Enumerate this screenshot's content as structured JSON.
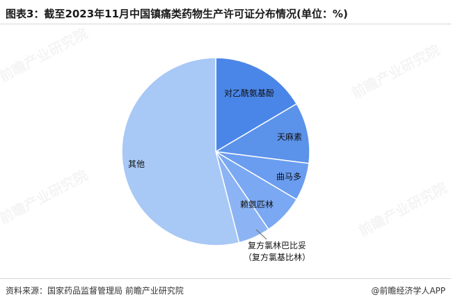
{
  "title": "图表3：截至2023年11月中国镇痛类药物生产许可证分布情况(单位：%)",
  "source": "资料来源：国家药品监督管理局 前瞻产业研究院",
  "brand": "@前瞻经济学人APP",
  "watermark": "前瞻产业研究院",
  "chart_data": {
    "type": "pie",
    "title": "图表3：截至2023年11月中国镇痛类药物生产许可证分布情况(单位：%)",
    "unit": "%",
    "start_angle_deg": 0,
    "direction": "clockwise",
    "legend": "none",
    "slices": [
      {
        "label": "对乙酰氨基酚",
        "label_line2": "",
        "value": 16.5,
        "color": "#4a86e8"
      },
      {
        "label": "天麻素",
        "label_line2": "",
        "value": 10.5,
        "color": "#5b92ea"
      },
      {
        "label": "曲马多",
        "label_line2": "",
        "value": 6.5,
        "color": "#6a9df0"
      },
      {
        "label": "赖氨匹林",
        "label_line2": "",
        "value": 7.0,
        "color": "#7aa8f2"
      },
      {
        "label": "复方氯林巴比妥",
        "label_line2": "（复方氯基比林）",
        "value": 5.5,
        "color": "#8cb4f4"
      },
      {
        "label": "其他",
        "label_line2": "",
        "value": 54.0,
        "color": "#a8c8f6"
      }
    ]
  }
}
